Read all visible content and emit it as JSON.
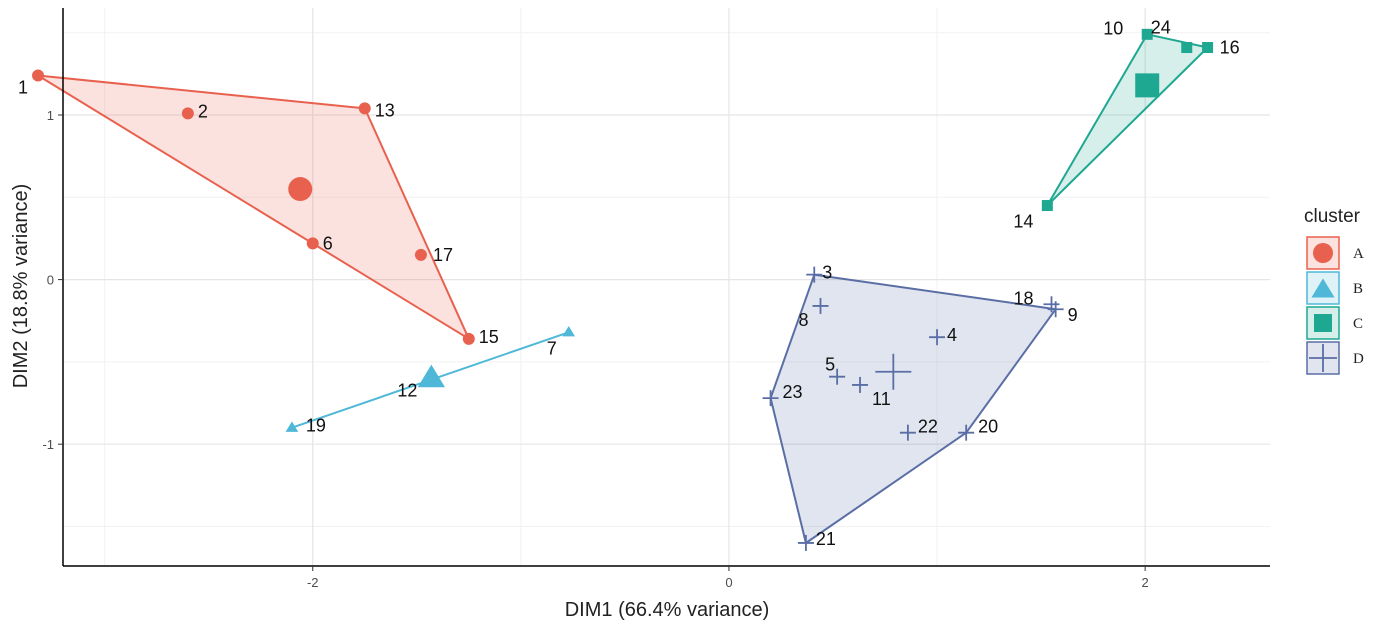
{
  "chart_data": {
    "type": "scatter",
    "xlabel": "DIM1 (66.4% variance)",
    "ylabel": "DIM2 (18.8% variance)",
    "xlim": [
      -3.2,
      2.6
    ],
    "ylim": [
      -1.74,
      1.65
    ],
    "x_ticks": [
      -2,
      0,
      2
    ],
    "y_ticks": [
      -1,
      0,
      1
    ],
    "x_tick_labels": [
      "-2",
      "0",
      "2"
    ],
    "y_tick_labels": [
      "-1",
      "0",
      "1"
    ],
    "grid": true,
    "legend": {
      "title": "cluster",
      "placement": "right",
      "entries": [
        "A",
        "B",
        "C",
        "D"
      ]
    },
    "colors": {
      "A": "#E8614E",
      "B": "#4FB8D8",
      "C": "#1FA891",
      "D": "#5A6EA6"
    },
    "shapes": {
      "A": "circle",
      "B": "triangle",
      "C": "square",
      "D": "cross"
    },
    "series": [
      {
        "name": "A",
        "points": [
          {
            "label": "1",
            "x": -3.32,
            "y": 1.24
          },
          {
            "label": "2",
            "x": -2.6,
            "y": 1.01
          },
          {
            "label": "13",
            "x": -1.75,
            "y": 1.04
          },
          {
            "label": "6",
            "x": -2.0,
            "y": 0.22
          },
          {
            "label": "17",
            "x": -1.48,
            "y": 0.15
          },
          {
            "label": "15",
            "x": -1.25,
            "y": -0.36
          }
        ],
        "centroid": {
          "x": -2.06,
          "y": 0.55
        },
        "hull": [
          "1",
          "13",
          "15"
        ]
      },
      {
        "name": "B",
        "points": [
          {
            "label": "7",
            "x": -0.77,
            "y": -0.32
          },
          {
            "label": "12",
            "x": -1.43,
            "y": -0.6
          },
          {
            "label": "19",
            "x": -2.1,
            "y": -0.9
          }
        ],
        "centroid": {
          "x": -1.43,
          "y": -0.6
        },
        "hull": [
          "7",
          "19"
        ]
      },
      {
        "name": "C",
        "points": [
          {
            "label": "10",
            "x": 2.01,
            "y": 1.49
          },
          {
            "label": "16",
            "x": 2.3,
            "y": 1.41
          },
          {
            "label": "24",
            "x": 2.2,
            "y": 1.41
          },
          {
            "label": "14",
            "x": 1.53,
            "y": 0.45
          }
        ],
        "centroid": {
          "x": 2.01,
          "y": 1.18
        },
        "hull": [
          "10",
          "16",
          "14"
        ]
      },
      {
        "name": "D",
        "points": [
          {
            "label": "3",
            "x": 0.41,
            "y": 0.03
          },
          {
            "label": "8",
            "x": 0.44,
            "y": -0.16
          },
          {
            "label": "18",
            "x": 1.55,
            "y": -0.15
          },
          {
            "label": "9",
            "x": 1.57,
            "y": -0.18
          },
          {
            "label": "4",
            "x": 1.0,
            "y": -0.35
          },
          {
            "label": "5",
            "x": 0.52,
            "y": -0.59
          },
          {
            "label": "11",
            "x": 0.63,
            "y": -0.64
          },
          {
            "label": "23",
            "x": 0.2,
            "y": -0.72
          },
          {
            "label": "22",
            "x": 0.86,
            "y": -0.93
          },
          {
            "label": "20",
            "x": 1.14,
            "y": -0.93
          },
          {
            "label": "21",
            "x": 0.37,
            "y": -1.6
          }
        ],
        "centroid": {
          "x": 0.79,
          "y": -0.56
        },
        "hull": [
          "3",
          "9",
          "20",
          "21",
          "23"
        ]
      }
    ]
  }
}
